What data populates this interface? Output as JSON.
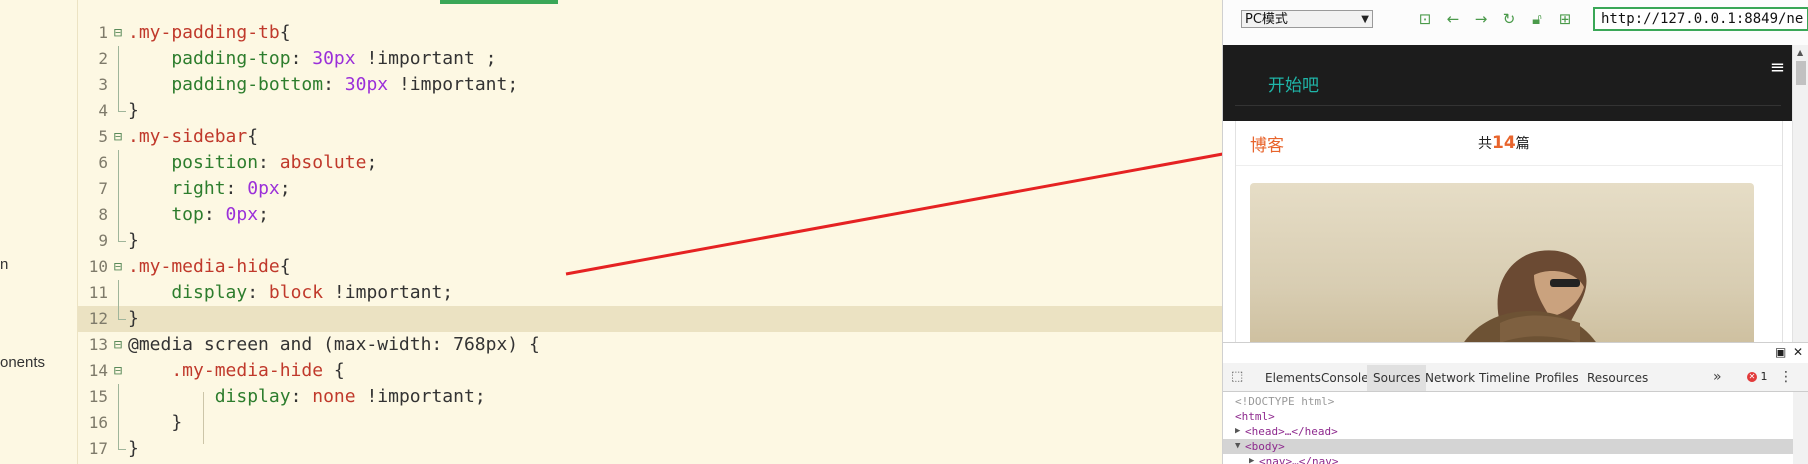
{
  "left_tree": {
    "fragments": [
      "n",
      "onents"
    ]
  },
  "editor": {
    "current_line": 12,
    "lines": [
      {
        "n": "1",
        "parts": [
          [
            "sel",
            ".my-padding-tb"
          ],
          [
            "brace",
            "{"
          ]
        ],
        "fold": "open"
      },
      {
        "n": "2",
        "parts": [
          [
            "prop",
            "    padding-top"
          ],
          [
            "punct",
            ": "
          ],
          [
            "num",
            "30px"
          ],
          [
            "imp",
            " !important ;"
          ]
        ]
      },
      {
        "n": "3",
        "parts": [
          [
            "prop",
            "    padding-bottom"
          ],
          [
            "punct",
            ": "
          ],
          [
            "num",
            "30px"
          ],
          [
            "imp",
            " !important;"
          ]
        ]
      },
      {
        "n": "4",
        "parts": [
          [
            "brace",
            "}"
          ]
        ],
        "fold": "end"
      },
      {
        "n": "5",
        "parts": [
          [
            "sel",
            ".my-sidebar"
          ],
          [
            "brace",
            "{"
          ]
        ],
        "fold": "open"
      },
      {
        "n": "6",
        "parts": [
          [
            "prop",
            "    position"
          ],
          [
            "punct",
            ": "
          ],
          [
            "val",
            "absolute"
          ],
          [
            "punct",
            ";"
          ]
        ]
      },
      {
        "n": "7",
        "parts": [
          [
            "prop",
            "    right"
          ],
          [
            "punct",
            ": "
          ],
          [
            "num",
            "0px"
          ],
          [
            "punct",
            ";"
          ]
        ]
      },
      {
        "n": "8",
        "parts": [
          [
            "prop",
            "    top"
          ],
          [
            "punct",
            ": "
          ],
          [
            "num",
            "0px"
          ],
          [
            "punct",
            ";"
          ]
        ]
      },
      {
        "n": "9",
        "parts": [
          [
            "brace",
            "}"
          ]
        ],
        "fold": "end"
      },
      {
        "n": "10",
        "parts": [
          [
            "sel",
            ".my-media-hide"
          ],
          [
            "brace",
            "{"
          ]
        ],
        "fold": "open"
      },
      {
        "n": "11",
        "parts": [
          [
            "prop",
            "    display"
          ],
          [
            "punct",
            ": "
          ],
          [
            "val",
            "block"
          ],
          [
            "imp",
            " !important;"
          ]
        ]
      },
      {
        "n": "12",
        "parts": [
          [
            "brace",
            "}"
          ]
        ],
        "fold": "end"
      },
      {
        "n": "13",
        "parts": [
          [
            "kw",
            "@media screen and (max-width: 768px) {"
          ]
        ],
        "fold": "open"
      },
      {
        "n": "14",
        "parts": [
          [
            "sel",
            "    .my-media-hide"
          ],
          [
            "brace",
            " {"
          ]
        ],
        "fold": "open"
      },
      {
        "n": "15",
        "parts": [
          [
            "prop",
            "        display"
          ],
          [
            "punct",
            ": "
          ],
          [
            "val",
            "none"
          ],
          [
            "imp",
            " !important;"
          ]
        ]
      },
      {
        "n": "16",
        "parts": [
          [
            "brace",
            "    }"
          ]
        ]
      },
      {
        "n": "17",
        "parts": [
          [
            "brace",
            "}"
          ]
        ],
        "fold": "end"
      }
    ]
  },
  "browser": {
    "mode_select": "PC模式",
    "url": "http://127.0.0.1:8849/ne",
    "toolbar_icons": [
      "terminal-icon",
      "back-arrow-icon",
      "forward-arrow-icon",
      "refresh-icon",
      "lock-icon",
      "qr-code-icon"
    ],
    "page": {
      "brand": "开始吧",
      "blog_tab": "博客",
      "count_prefix": "共",
      "count_value": "14",
      "count_suffix": "篇",
      "hamburger": "≡"
    },
    "devtools": {
      "tabs": [
        "Elements",
        "Console",
        "Sources",
        "Network",
        "Timeline",
        "Profiles",
        "Resources"
      ],
      "active_tab": "Sources",
      "error_count": "1",
      "dom_lines": [
        {
          "text": "<!DOCTYPE html>",
          "kind": "doctype"
        },
        {
          "text": "<html>",
          "kind": "tag"
        },
        {
          "text": "<head>…</head>",
          "kind": "collapsed"
        },
        {
          "text": "<body>",
          "kind": "open",
          "highlight": true
        },
        {
          "text": "<nav>…</nav>",
          "kind": "collapsed"
        }
      ]
    }
  },
  "colors": {
    "editor_bg": "#fdf8e3",
    "selector": "#c0392b",
    "property": "#2d7d2d",
    "number": "#9b30d9",
    "accent_green": "#3aa757",
    "arrow_red": "#e52222"
  }
}
